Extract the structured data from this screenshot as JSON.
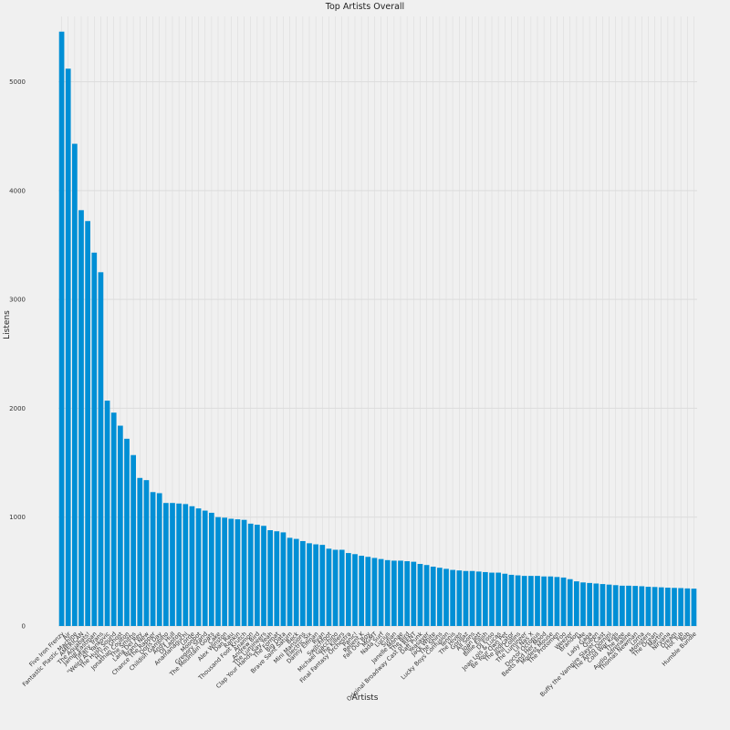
{
  "chart_data": {
    "type": "bar",
    "title": "Top Artists Overall",
    "xlabel": "Artists",
    "ylabel": "Listens",
    "ylim": [
      0,
      5600
    ],
    "yticks": [
      0,
      1000,
      2000,
      3000,
      4000,
      5000
    ],
    "grid": true,
    "bar_color": "#008fd5",
    "background_color": "#f0f0f0",
    "grid_color": "#dcdcdc",
    "categories": [
      "Five Iron Frenzy",
      "Ajr",
      "Fantastic Plastic Machine",
      "AMERICAN",
      "The Aquabats!",
      "Jamie Eastman",
      "Tiffany Trans",
      "\"Weird Al\" Yankovic",
      "The Hush Sound",
      "Hi I'm Ghost",
      "Jonathan Coulton",
      "The Smiths",
      "Lana Del Rey",
      "Brand New",
      "Chance The Rapper",
      "Doris Day",
      "Childish Gambino",
      "Andy Hull",
      "DJ Laptop",
      "Anamanaguchi",
      "Lorde",
      "Moonbot",
      "Gregory Stand",
      "The Mountain Goats",
      "Cake",
      "Alex Winston",
      "Dan Rau",
      "Rankin",
      "Thousand Foot Krutch",
      "Anamon",
      "Andrew Bird",
      "The Lumineers",
      "Clap Your Hands Say Yeah",
      "The Format",
      "Big Data",
      "Brave Saint Saturn",
      "Beck",
      "Mini Mansions",
      "Electric Six",
      "Danny Elfman",
      "Ryan",
      "Switchfoot",
      "Michael Giacchino",
      "The Killers",
      "Final Fantasy Orchestra",
      "Panic!",
      "Relient K",
      "Fall Out Boy",
      "MGMT",
      "Nada Surf",
      "Lucius",
      "Sufjan",
      "Janelle Monae",
      "The Bird",
      "Original Broadway Cast of RENT",
      "Daft Punk",
      "Yeasayer",
      "Jack White",
      "The Shins",
      "Lucky Boys Confusion",
      "Tennis",
      "The Hives",
      "Gorillaz",
      "All Sons",
      "Joan Jett",
      "Billie Eilish",
      "DJ Eoso",
      "Joan Lois & Lucas",
      "Be Your Own Pet",
      "The Indicator",
      "Phil Collins",
      "The Lumineer",
      "Lil Nas X",
      "Doctor Octopus",
      "Beets and Her Mood",
      "Modest Mouse",
      "The Protomen",
      "Foo",
      "Weezer",
      "Brandon",
      "Me",
      "Lady Gaga",
      "Queen",
      "Buffy the Vampire Slayer Cast",
      "The Anno Domini",
      "Cold War Kids",
      "The Bee",
      "Audio Adrenaline",
      "Thomas Newman",
      "Lorna",
      "Monsters",
      "The Ocean",
      "Martin",
      "Nirvana",
      "Dream",
      "Hot Tub",
      "Rob",
      "Humble Bundle"
    ],
    "values": [
      5460,
      5120,
      4430,
      3820,
      3720,
      3430,
      3250,
      2070,
      1960,
      1840,
      1720,
      1570,
      1360,
      1340,
      1230,
      1220,
      1130,
      1130,
      1125,
      1120,
      1100,
      1080,
      1060,
      1040,
      1000,
      995,
      985,
      980,
      975,
      940,
      930,
      920,
      880,
      870,
      860,
      810,
      800,
      780,
      760,
      750,
      745,
      710,
      700,
      700,
      670,
      660,
      645,
      635,
      625,
      615,
      605,
      600,
      600,
      595,
      590,
      570,
      560,
      545,
      535,
      525,
      515,
      510,
      505,
      505,
      500,
      495,
      490,
      490,
      480,
      470,
      465,
      460,
      460,
      460,
      455,
      455,
      450,
      445,
      430,
      410,
      400,
      395,
      390,
      385,
      380,
      375,
      370,
      370,
      368,
      365,
      360,
      358,
      355,
      352,
      350,
      348,
      345,
      343
    ]
  }
}
